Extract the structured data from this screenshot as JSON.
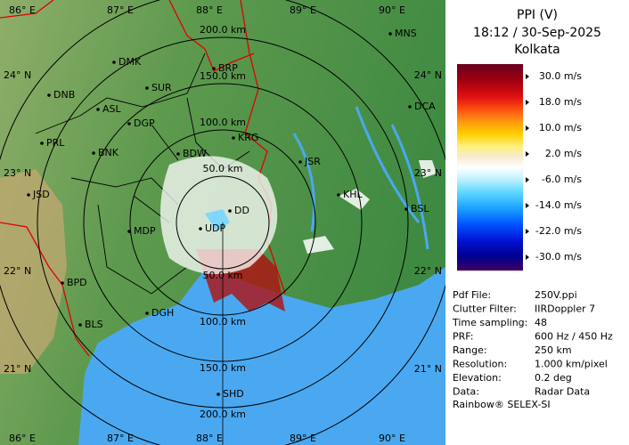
{
  "map": {
    "lon_labels": [
      "86° E",
      "87° E",
      "88° E",
      "89° E",
      "90° E"
    ],
    "lat_labels": [
      "24° N",
      "23° N",
      "22° N",
      "21° N"
    ],
    "range_labels": [
      "50.0 km",
      "100.0 km",
      "150.0 km",
      "200.0 km"
    ],
    "cities": [
      "MNS",
      "DMK",
      "BRP",
      "DNB",
      "SUR",
      "ASL",
      "DCA",
      "DGP",
      "KRG",
      "PRL",
      "BNK",
      "BDW",
      "JSR",
      "JSD",
      "KHL",
      "DD",
      "BSL",
      "MDP",
      "UDP",
      "BPD",
      "DGH",
      "BLS",
      "SHD"
    ]
  },
  "panel": {
    "title": "PPI (V)",
    "time": "18:12 / 30-Sep-2025",
    "site": "Kolkata",
    "scale_labels": [
      "30.0 m/s",
      "18.0 m/s",
      "10.0 m/s",
      "2.0 m/s",
      "-6.0 m/s",
      "-14.0 m/s",
      "-22.0 m/s",
      "-30.0 m/s"
    ],
    "info": [
      [
        "Pdf File:",
        "250V.ppi"
      ],
      [
        "Clutter Filter:",
        "IIRDoppler 7"
      ],
      [
        "Time sampling:",
        "48"
      ],
      [
        "PRF:",
        "600 Hz / 450 Hz"
      ],
      [
        "Range:",
        "250 km"
      ],
      [
        "Resolution:",
        "1.000 km/pixel"
      ],
      [
        "Elevation:",
        "0.2 deg"
      ],
      [
        "Data:",
        "Radar Data"
      ]
    ],
    "footer": "Rainbow® SELEX-SI"
  }
}
